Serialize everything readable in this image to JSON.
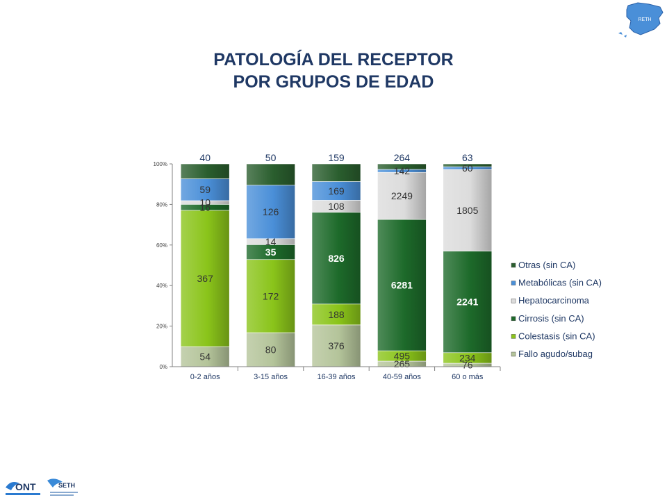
{
  "title": {
    "line1": "PATOLOGÍA DEL RECEPTOR",
    "line2": "POR GRUPOS DE EDAD"
  },
  "logos": {
    "map_badge": "RETH",
    "ont": "ONT",
    "seth": "SETH"
  },
  "colors": {
    "title": "#1f3864",
    "fallo": "#b4c49a",
    "colestasis": "#8ac41a",
    "cirrosis": "#1d6a2a",
    "hepatocarcinoma": "#dcdcdc",
    "metabolicas": "#4a8fd8",
    "otras": "#2a5e2e"
  },
  "chart_data": {
    "type": "bar",
    "stacked": "percent",
    "categories": [
      "0-2 años",
      "3-15 años",
      "16-39 años",
      "40-59 años",
      "60 o más"
    ],
    "yticks": [
      "0%",
      "20%",
      "40%",
      "60%",
      "80%",
      "100%"
    ],
    "ylim": [
      0,
      100
    ],
    "legend_position": "right",
    "series": [
      {
        "name": "Fallo agudo/subag",
        "key": "fallo",
        "values": [
          54,
          80,
          376,
          265,
          76
        ]
      },
      {
        "name": "Colestasis (sin CA)",
        "key": "colestasis",
        "values": [
          367,
          172,
          188,
          495,
          234
        ]
      },
      {
        "name": "Cirrosis (sin CA)",
        "key": "cirrosis",
        "values": [
          16,
          35,
          826,
          6281,
          2241
        ]
      },
      {
        "name": "Hepatocarcinoma",
        "key": "hepatocarcinoma",
        "values": [
          10,
          14,
          108,
          2249,
          1805
        ]
      },
      {
        "name": "Metabólicas (sin CA)",
        "key": "metabolicas",
        "values": [
          59,
          126,
          169,
          142,
          60
        ]
      },
      {
        "name": "Otras (sin CA)",
        "key": "otras",
        "values": [
          40,
          50,
          159,
          264,
          63
        ]
      }
    ]
  }
}
